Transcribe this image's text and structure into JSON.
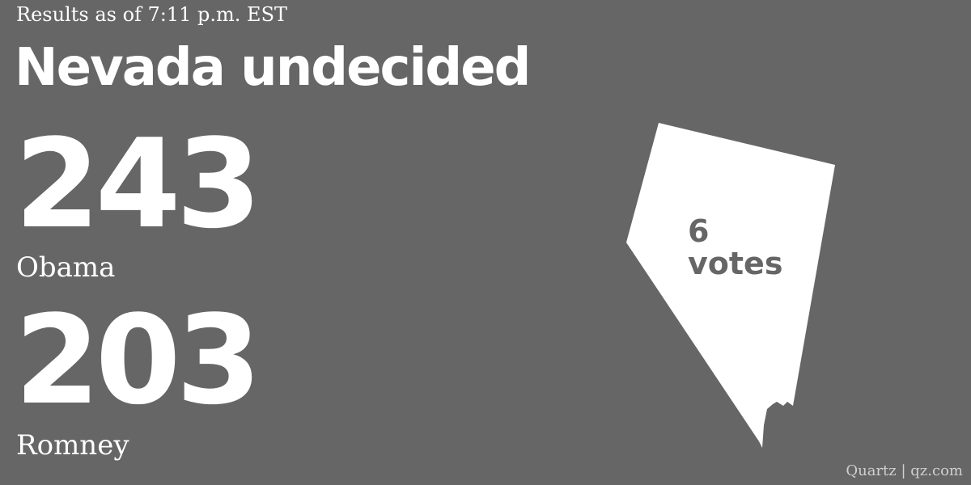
{
  "header": {
    "timestamp": "Results as of 7:11 p.m. EST",
    "headline": "Nevada undecided"
  },
  "results": [
    {
      "candidate": "Obama",
      "electoral_votes": "243"
    },
    {
      "candidate": "Romney",
      "electoral_votes": "203"
    }
  ],
  "state": {
    "name": "Nevada",
    "votes_number": "6",
    "votes_label": "votes"
  },
  "footer": {
    "credit": "Quartz | qz.com"
  },
  "colors": {
    "background": "#666666",
    "text": "#ffffff",
    "state_fill": "#ffffff",
    "state_label": "#666666",
    "credit": "#cfcfcf"
  }
}
